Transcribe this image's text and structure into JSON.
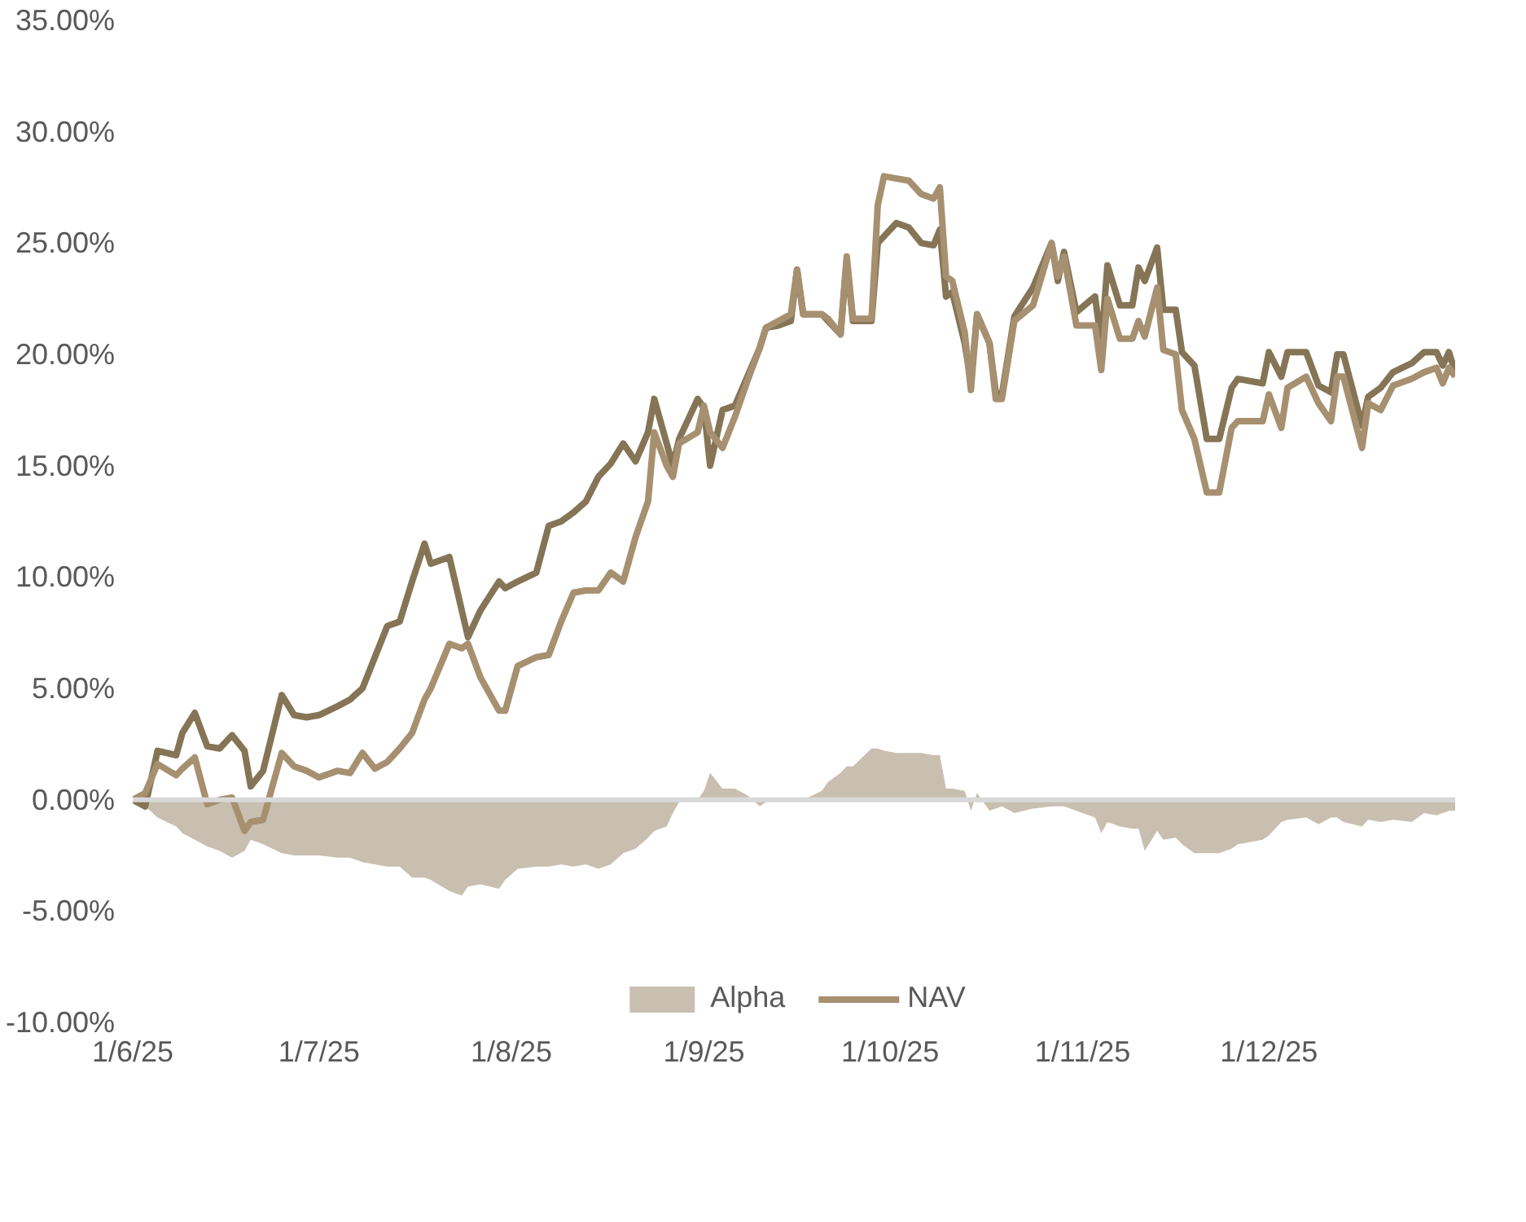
{
  "chart_data": {
    "type": "line",
    "x": [
      "2025-06-01",
      "2025-06-03",
      "2025-06-05",
      "2025-06-08",
      "2025-06-09",
      "2025-06-11",
      "2025-06-13",
      "2025-06-15",
      "2025-06-17",
      "2025-06-19",
      "2025-06-20",
      "2025-06-22",
      "2025-06-25",
      "2025-06-27",
      "2025-06-29",
      "2025-07-01",
      "2025-07-04",
      "2025-07-06",
      "2025-07-08",
      "2025-07-10",
      "2025-07-12",
      "2025-07-14",
      "2025-07-16",
      "2025-07-18",
      "2025-07-19",
      "2025-07-22",
      "2025-07-24",
      "2025-07-25",
      "2025-07-27",
      "2025-07-30",
      "2025-07-31",
      "2025-08-02",
      "2025-08-05",
      "2025-08-07",
      "2025-08-09",
      "2025-08-11",
      "2025-08-13",
      "2025-08-15",
      "2025-08-17",
      "2025-08-19",
      "2025-08-21",
      "2025-08-23",
      "2025-08-24",
      "2025-08-26",
      "2025-08-27",
      "2025-08-28",
      "2025-08-31",
      "2025-09-01",
      "2025-09-02",
      "2025-09-04",
      "2025-09-06",
      "2025-09-08",
      "2025-09-10",
      "2025-09-11",
      "2025-09-13",
      "2025-09-15",
      "2025-09-16",
      "2025-09-17",
      "2025-09-20",
      "2025-09-21",
      "2025-09-23",
      "2025-09-24",
      "2025-09-25",
      "2025-09-28",
      "2025-09-29",
      "2025-09-30",
      "2025-10-02",
      "2025-10-04",
      "2025-10-06",
      "2025-10-08",
      "2025-10-09",
      "2025-10-10",
      "2025-10-11",
      "2025-10-13",
      "2025-10-14",
      "2025-10-15",
      "2025-10-17",
      "2025-10-18",
      "2025-10-19",
      "2025-10-21",
      "2025-10-24",
      "2025-10-27",
      "2025-10-28",
      "2025-10-29",
      "2025-10-31",
      "2025-11-03",
      "2025-11-04",
      "2025-11-05",
      "2025-11-07",
      "2025-11-09",
      "2025-11-10",
      "2025-11-11",
      "2025-11-13",
      "2025-11-14",
      "2025-11-16",
      "2025-11-17",
      "2025-11-19",
      "2025-11-21",
      "2025-11-23",
      "2025-11-25",
      "2025-11-26",
      "2025-11-30",
      "2025-12-01",
      "2025-12-03",
      "2025-12-04",
      "2025-12-07",
      "2025-12-09",
      "2025-12-11",
      "2025-12-12",
      "2025-12-13",
      "2025-12-16",
      "2025-12-17",
      "2025-12-19",
      "2025-12-21",
      "2025-12-24",
      "2025-12-26",
      "2025-12-28",
      "2025-12-29",
      "2025-12-30",
      "2025-12-31"
    ],
    "series": [
      {
        "name": "Alpha",
        "type": "area",
        "color": "#c9bfb0",
        "values": [
          0,
          -0.3,
          -0.8,
          -1.2,
          -1.5,
          -1.8,
          -2.1,
          -2.3,
          -2.6,
          -2.3,
          -1.8,
          -2.0,
          -2.4,
          -2.5,
          -2.5,
          -2.5,
          -2.6,
          -2.6,
          -2.8,
          -2.9,
          -3.0,
          -3.0,
          -3.5,
          -3.5,
          -3.6,
          -4.1,
          -4.3,
          -3.9,
          -3.8,
          -4.0,
          -3.6,
          -3.1,
          -3.0,
          -3.0,
          -2.9,
          -3.0,
          -2.9,
          -3.1,
          -2.9,
          -2.4,
          -2.2,
          -1.7,
          -1.4,
          -1.2,
          -0.6,
          -0.1,
          0,
          0.4,
          1.2,
          0.5,
          0.5,
          0.2,
          -0.3,
          -0.1,
          0,
          0,
          -0.1,
          0,
          0.4,
          0.8,
          1.2,
          1.5,
          1.5,
          2.3,
          2.3,
          2.2,
          2.1,
          2.1,
          2.1,
          2.0,
          2.0,
          0.5,
          0.5,
          0.4,
          -0.5,
          0.3,
          -0.5,
          -0.4,
          -0.3,
          -0.6,
          -0.4,
          -0.3,
          -0.3,
          -0.3,
          -0.5,
          -0.8,
          -1.5,
          -1.0,
          -1.2,
          -1.3,
          -1.3,
          -2.3,
          -1.4,
          -1.8,
          -1.7,
          -2.0,
          -2.4,
          -2.4,
          -2.4,
          -2.2,
          -2.0,
          -1.8,
          -1.6,
          -1.0,
          -0.9,
          -0.8,
          -1.1,
          -0.8,
          -0.8,
          -1.0,
          -1.2,
          -0.9,
          -1.0,
          -0.9,
          -1.0,
          -0.6,
          -0.7,
          -0.6,
          -0.5,
          -0.5
        ]
      },
      {
        "color": "#857556",
        "values": [
          0,
          -0.3,
          2.2,
          2.0,
          3.0,
          3.9,
          2.4,
          2.3,
          2.9,
          2.2,
          0.6,
          1.3,
          4.7,
          3.8,
          3.7,
          3.8,
          4.2,
          4.5,
          5.0,
          6.4,
          7.8,
          8.0,
          9.8,
          11.5,
          10.6,
          10.9,
          8.5,
          7.3,
          8.5,
          9.8,
          9.5,
          9.8,
          10.2,
          12.3,
          12.5,
          12.9,
          13.4,
          14.5,
          15.1,
          16.0,
          15.2,
          16.5,
          18.0,
          16.0,
          15.0,
          16.2,
          18.0,
          17.6,
          15.0,
          17.5,
          17.7,
          19.0,
          20.3,
          21.2,
          21.3,
          21.5,
          23.8,
          21.8,
          21.8,
          21.5,
          20.9,
          24.2,
          21.5,
          21.5,
          25.0,
          25.3,
          25.9,
          25.7,
          25.0,
          24.9,
          25.6,
          22.6,
          22.8,
          20.5,
          18.8,
          21.8,
          20.5,
          18.3,
          18.2,
          21.7,
          23.0,
          25.0,
          23.3,
          24.6,
          21.9,
          22.6,
          20.5,
          24.0,
          22.2,
          22.2,
          23.9,
          23.3,
          24.8,
          22.0,
          22.0,
          20.1,
          19.5,
          16.2,
          16.2,
          18.5,
          18.9,
          18.7,
          20.1,
          19.0,
          20.1,
          20.1,
          18.6,
          18.3,
          20.0,
          20.0,
          16.8,
          18.1,
          18.5,
          19.2,
          19.6,
          20.1,
          20.1,
          19.5,
          20.1,
          19.2
        ]
      },
      {
        "name": "NAV",
        "color": "#a69070",
        "values": [
          0,
          0.3,
          1.6,
          1.1,
          1.4,
          1.9,
          -0.2,
          0.0,
          0.1,
          -1.4,
          -1.0,
          -0.9,
          2.1,
          1.5,
          1.3,
          1.0,
          1.3,
          1.2,
          2.1,
          1.4,
          1.7,
          2.3,
          3.0,
          4.5,
          5.0,
          7.0,
          6.8,
          7.0,
          5.5,
          4.0,
          4.0,
          6.0,
          6.4,
          6.5,
          8.0,
          9.3,
          9.4,
          9.4,
          10.2,
          9.8,
          11.8,
          13.4,
          16.5,
          15.0,
          14.5,
          16.0,
          16.5,
          17.7,
          16.5,
          15.8,
          17.2,
          18.8,
          20.3,
          21.2,
          21.5,
          21.8,
          23.8,
          21.8,
          21.8,
          21.6,
          20.9,
          24.4,
          21.6,
          21.6,
          26.7,
          28.0,
          27.9,
          27.8,
          27.2,
          27.0,
          27.5,
          23.5,
          23.3,
          21.0,
          18.4,
          21.8,
          20.5,
          18.0,
          18.0,
          21.5,
          22.2,
          25.0,
          23.5,
          24.4,
          21.3,
          21.3,
          19.3,
          22.5,
          20.7,
          20.7,
          21.5,
          20.8,
          23.0,
          20.2,
          20.0,
          17.5,
          16.2,
          13.8,
          13.8,
          16.7,
          17.0,
          17.0,
          18.2,
          16.7,
          18.5,
          19.0,
          17.8,
          17.0,
          19.0,
          19.0,
          15.8,
          17.8,
          17.5,
          18.6,
          18.9,
          19.2,
          19.4,
          18.7,
          19.4,
          19.0
        ]
      }
    ],
    "xlim": [
      "2025-06-01",
      "2025-12-31"
    ],
    "xticks": [
      {
        "value": "2025-06-01",
        "label": "1/6/25"
      },
      {
        "value": "2025-07-01",
        "label": "1/7/25"
      },
      {
        "value": "2025-08-01",
        "label": "1/8/25"
      },
      {
        "value": "2025-09-01",
        "label": "1/9/25"
      },
      {
        "value": "2025-10-01",
        "label": "1/10/25"
      },
      {
        "value": "2025-11-01",
        "label": "1/11/25"
      },
      {
        "value": "2025-12-01",
        "label": "1/12/25"
      }
    ],
    "ylim": [
      -10,
      35
    ],
    "yticks": [
      {
        "value": -10,
        "label": "-10.00%"
      },
      {
        "value": -5,
        "label": "-5.00%"
      },
      {
        "value": 0,
        "label": "0.00%"
      },
      {
        "value": 5,
        "label": "5.00%"
      },
      {
        "value": 10,
        "label": "10.00%"
      },
      {
        "value": 15,
        "label": "15.00%"
      },
      {
        "value": 20,
        "label": "20.00%"
      },
      {
        "value": 25,
        "label": "25.00%"
      },
      {
        "value": 30,
        "label": "30.00%"
      },
      {
        "value": 35,
        "label": "35.00%"
      }
    ],
    "ref_lines": [
      {
        "axis": "y",
        "value": 0,
        "color": "#d9d9d9"
      }
    ],
    "grid": false,
    "legend": "bottom",
    "line_style": "solid"
  }
}
